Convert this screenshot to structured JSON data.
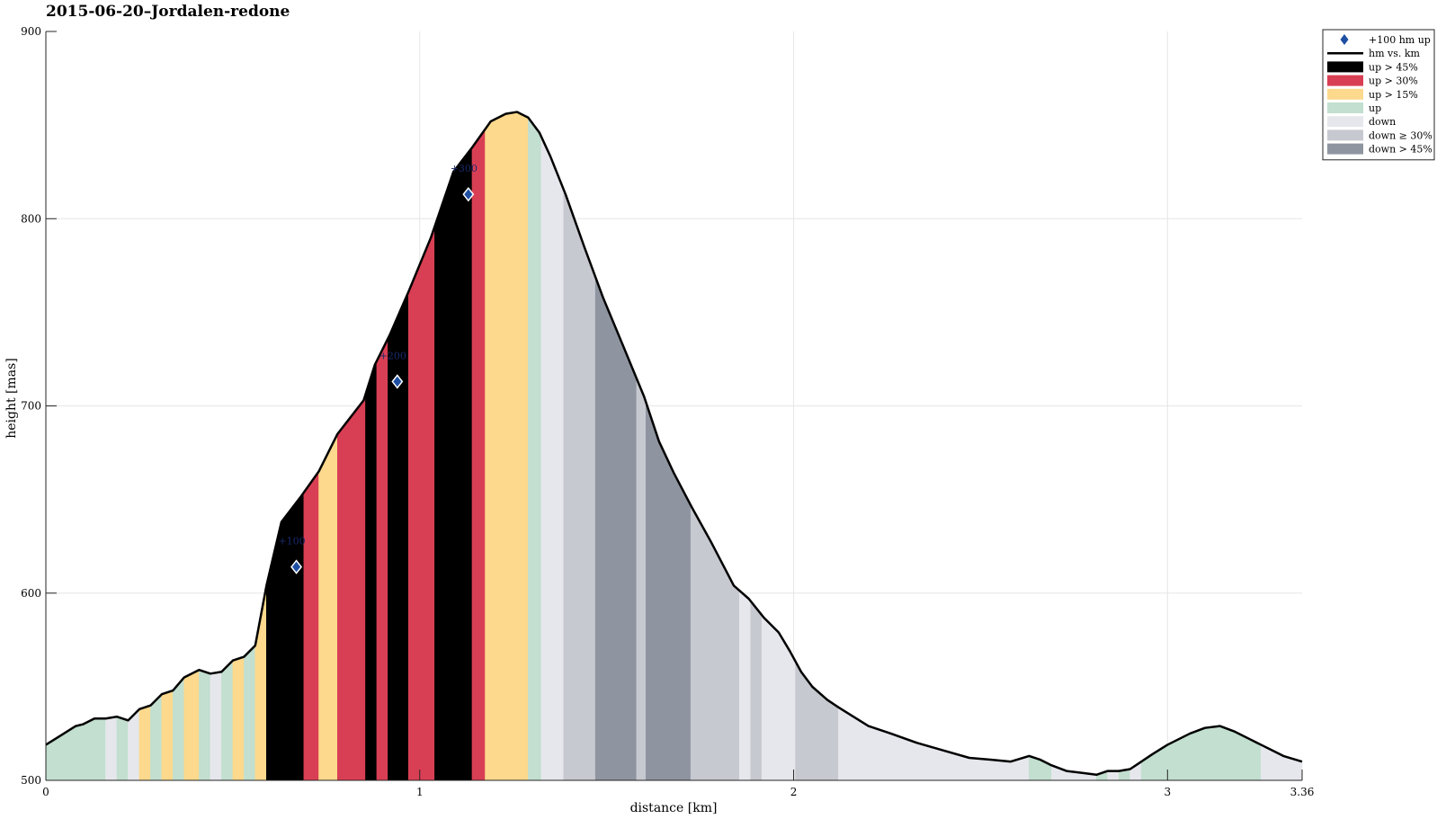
{
  "chart_data": {
    "type": "area",
    "title": "2015-06-20–Jordalen-redone",
    "xlabel": "distance [km]",
    "ylabel": "height [mas]",
    "xlim": [
      0,
      3.36
    ],
    "ylim": [
      500,
      900
    ],
    "xticks": [
      0,
      1,
      2,
      3,
      3.36
    ],
    "xtick_labels": [
      "0",
      "1",
      "2",
      "3",
      "3.36"
    ],
    "yticks": [
      500,
      600,
      700,
      800,
      900
    ],
    "ytick_labels": [
      "500",
      "600",
      "700",
      "800",
      "900"
    ],
    "grid": true,
    "legend_position": "outside-top-right",
    "profile": {
      "name": "hm vs. km",
      "x": [
        0,
        0.04,
        0.08,
        0.1,
        0.13,
        0.16,
        0.19,
        0.22,
        0.25,
        0.28,
        0.31,
        0.34,
        0.37,
        0.41,
        0.44,
        0.47,
        0.5,
        0.53,
        0.56,
        0.59,
        0.63,
        0.68,
        0.73,
        0.78,
        0.85,
        0.88,
        0.92,
        0.97,
        1.03,
        1.09,
        1.14,
        1.19,
        1.23,
        1.26,
        1.29,
        1.32,
        1.35,
        1.39,
        1.44,
        1.49,
        1.54,
        1.6,
        1.64,
        1.68,
        1.73,
        1.78,
        1.84,
        1.88,
        1.92,
        1.96,
        1.99,
        2.02,
        2.05,
        2.09,
        2.12,
        2.16,
        2.2,
        2.26,
        2.33,
        2.4,
        2.47,
        2.53,
        2.58,
        2.63,
        2.66,
        2.69,
        2.73,
        2.77,
        2.81,
        2.84,
        2.87,
        2.9,
        2.93,
        2.96,
        3.0,
        3.03,
        3.06,
        3.1,
        3.14,
        3.18,
        3.22,
        3.25,
        3.28,
        3.31,
        3.36
      ],
      "y": [
        519,
        524,
        529,
        530,
        533,
        533,
        534,
        532,
        538,
        540,
        546,
        548,
        555,
        559,
        557,
        558,
        564,
        566,
        572,
        604,
        638,
        651,
        665,
        685,
        703,
        722,
        738,
        761,
        790,
        825,
        838,
        852,
        856,
        857,
        854,
        846,
        833,
        813,
        785,
        758,
        734,
        705,
        681,
        664,
        645,
        627,
        604,
        597,
        587,
        579,
        569,
        558,
        550,
        543,
        539,
        534,
        529,
        525,
        520,
        516,
        512,
        511,
        510,
        513,
        511,
        508,
        505,
        504,
        503,
        505,
        505,
        506,
        510,
        514,
        519,
        522,
        525,
        528,
        529,
        526,
        522,
        519,
        516,
        513,
        510
      ]
    },
    "markers": {
      "name": "+100 hm up",
      "x": [
        0.67,
        0.94,
        1.13
      ],
      "y": [
        614,
        713,
        813
      ],
      "labels": [
        "+100",
        "+200",
        "+300"
      ]
    },
    "gradient_classes": [
      {
        "key": "up45",
        "name": "up > 45%",
        "color": "#000000"
      },
      {
        "key": "up30",
        "name": "up > 30%",
        "color": "#d93f54"
      },
      {
        "key": "up15",
        "name": "up > 15%",
        "color": "#fcd98c"
      },
      {
        "key": "up",
        "name": "up",
        "color": "#c2dfcf"
      },
      {
        "key": "down",
        "name": "down",
        "color": "#e6e7ec"
      },
      {
        "key": "down30",
        "name": "down ≥ 30%",
        "color": "#c7c9d0"
      },
      {
        "key": "down45",
        "name": "down > 45%",
        "color": "#8f95a0"
      }
    ],
    "segments": [
      {
        "from": 0,
        "to": 0.16,
        "cls": "up"
      },
      {
        "from": 0.16,
        "to": 0.19,
        "cls": "down"
      },
      {
        "from": 0.19,
        "to": 0.22,
        "cls": "up"
      },
      {
        "from": 0.22,
        "to": 0.25,
        "cls": "down"
      },
      {
        "from": 0.25,
        "to": 0.28,
        "cls": "up15"
      },
      {
        "from": 0.28,
        "to": 0.31,
        "cls": "up"
      },
      {
        "from": 0.31,
        "to": 0.34,
        "cls": "up15"
      },
      {
        "from": 0.34,
        "to": 0.37,
        "cls": "up"
      },
      {
        "from": 0.37,
        "to": 0.41,
        "cls": "up15"
      },
      {
        "from": 0.41,
        "to": 0.44,
        "cls": "up"
      },
      {
        "from": 0.44,
        "to": 0.47,
        "cls": "down"
      },
      {
        "from": 0.47,
        "to": 0.5,
        "cls": "up"
      },
      {
        "from": 0.5,
        "to": 0.53,
        "cls": "up15"
      },
      {
        "from": 0.53,
        "to": 0.56,
        "cls": "up"
      },
      {
        "from": 0.56,
        "to": 0.59,
        "cls": "up15"
      },
      {
        "from": 0.59,
        "to": 0.69,
        "cls": "up45"
      },
      {
        "from": 0.69,
        "to": 0.73,
        "cls": "up30"
      },
      {
        "from": 0.73,
        "to": 0.78,
        "cls": "up15"
      },
      {
        "from": 0.78,
        "to": 0.855,
        "cls": "up30"
      },
      {
        "from": 0.855,
        "to": 0.885,
        "cls": "up45"
      },
      {
        "from": 0.885,
        "to": 0.915,
        "cls": "up30"
      },
      {
        "from": 0.915,
        "to": 0.97,
        "cls": "up45"
      },
      {
        "from": 0.97,
        "to": 1.04,
        "cls": "up30"
      },
      {
        "from": 1.04,
        "to": 1.14,
        "cls": "up45"
      },
      {
        "from": 1.14,
        "to": 1.175,
        "cls": "up30"
      },
      {
        "from": 1.175,
        "to": 1.29,
        "cls": "up15"
      },
      {
        "from": 1.29,
        "to": 1.325,
        "cls": "up"
      },
      {
        "from": 1.325,
        "to": 1.385,
        "cls": "down"
      },
      {
        "from": 1.385,
        "to": 1.47,
        "cls": "down30"
      },
      {
        "from": 1.47,
        "to": 1.58,
        "cls": "down45"
      },
      {
        "from": 1.58,
        "to": 1.605,
        "cls": "down30"
      },
      {
        "from": 1.605,
        "to": 1.725,
        "cls": "down45"
      },
      {
        "from": 1.725,
        "to": 1.855,
        "cls": "down30"
      },
      {
        "from": 1.855,
        "to": 1.885,
        "cls": "down"
      },
      {
        "from": 1.885,
        "to": 1.915,
        "cls": "down30"
      },
      {
        "from": 1.915,
        "to": 2.005,
        "cls": "down"
      },
      {
        "from": 2.005,
        "to": 2.12,
        "cls": "down30"
      },
      {
        "from": 2.12,
        "to": 2.63,
        "cls": "down"
      },
      {
        "from": 2.63,
        "to": 2.69,
        "cls": "up"
      },
      {
        "from": 2.69,
        "to": 2.81,
        "cls": "down"
      },
      {
        "from": 2.81,
        "to": 2.84,
        "cls": "up"
      },
      {
        "from": 2.84,
        "to": 2.87,
        "cls": "down"
      },
      {
        "from": 2.87,
        "to": 2.9,
        "cls": "up"
      },
      {
        "from": 2.9,
        "to": 2.93,
        "cls": "down"
      },
      {
        "from": 2.93,
        "to": 3.25,
        "cls": "up"
      },
      {
        "from": 3.25,
        "to": 3.36,
        "cls": "down"
      }
    ],
    "legend": [
      {
        "key": "marker",
        "label": "+100 hm up"
      },
      {
        "key": "line",
        "label": "hm vs. km"
      },
      {
        "key": "up45",
        "label": "up > 45%"
      },
      {
        "key": "up30",
        "label": "up > 30%"
      },
      {
        "key": "up15",
        "label": "up > 15%"
      },
      {
        "key": "up",
        "label": "up"
      },
      {
        "key": "down",
        "label": "down"
      },
      {
        "key": "down30",
        "label": "down ≥ 30%"
      },
      {
        "key": "down45",
        "label": "down > 45%"
      }
    ],
    "colors": {
      "line": "#000000",
      "marker": "#1e4fa3",
      "grid": "#e6e6e6",
      "axis": "#262626"
    }
  }
}
